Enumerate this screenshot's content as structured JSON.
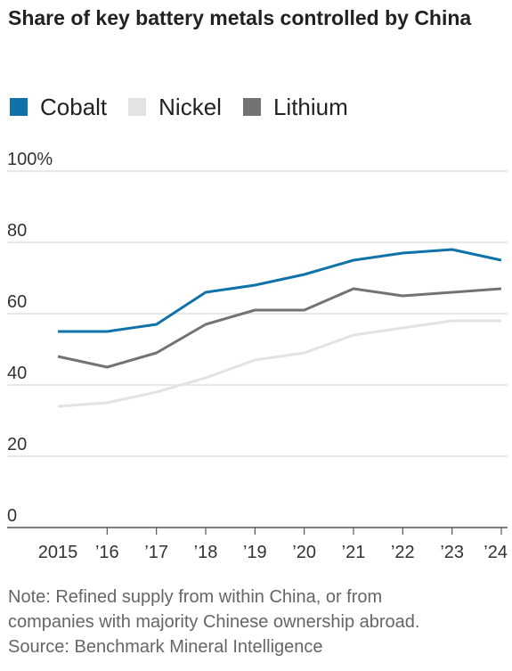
{
  "title": "Share of key battery metals controlled by China",
  "legend": {
    "items": [
      {
        "label": "Cobalt",
        "color": "#0f73a9"
      },
      {
        "label": "Nickel",
        "color": "#e3e3e3"
      },
      {
        "label": "Lithium",
        "color": "#737373"
      }
    ]
  },
  "notes": {
    "line1": "Note: Refined supply from within China, or from",
    "line2": "companies with majority Chinese ownership abroad.",
    "source": "Source: Benchmark Mineral Intelligence"
  },
  "chart_data": {
    "type": "line",
    "x": [
      "2015",
      "’16",
      "’17",
      "’18",
      "’19",
      "’20",
      "’21",
      "’22",
      "’23",
      "’24"
    ],
    "ylim": [
      0,
      100
    ],
    "yticks": [
      {
        "value": 100,
        "label": "100%"
      },
      {
        "value": 80,
        "label": "80"
      },
      {
        "value": 60,
        "label": "60"
      },
      {
        "value": 40,
        "label": "40"
      },
      {
        "value": 20,
        "label": "20"
      },
      {
        "value": 0,
        "label": "0"
      }
    ],
    "grid": true,
    "series": [
      {
        "name": "Nickel",
        "color": "#e3e3e3",
        "values": [
          34,
          35,
          38,
          42,
          47,
          49,
          54,
          56,
          58,
          58
        ]
      },
      {
        "name": "Lithium",
        "color": "#737373",
        "values": [
          48,
          45,
          49,
          57,
          61,
          61,
          67,
          65,
          66,
          67
        ]
      },
      {
        "name": "Cobalt",
        "color": "#0f73a9",
        "values": [
          55,
          55,
          57,
          66,
          68,
          71,
          75,
          77,
          78,
          75
        ]
      }
    ]
  }
}
